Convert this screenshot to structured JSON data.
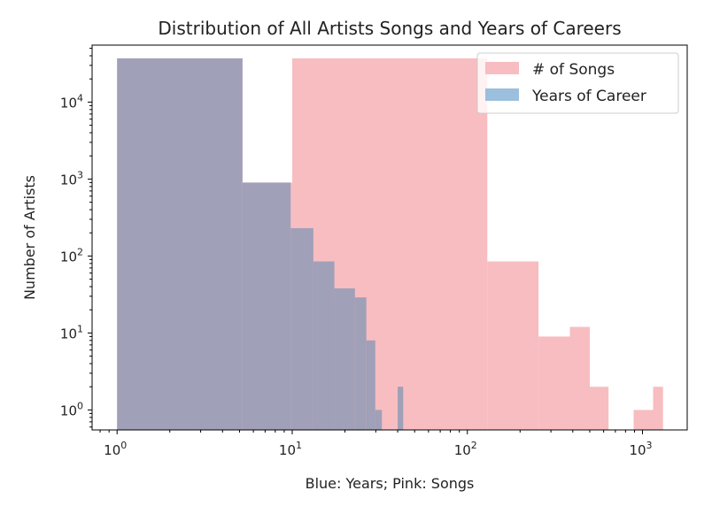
{
  "chart_data": {
    "type": "histogram",
    "title": "Distribution of All Artists Songs and Years of Careers",
    "xlabel": "Blue: Years; Pink: Songs",
    "ylabel": "Number of Artists",
    "xscale": "log",
    "yscale": "log",
    "xlim": [
      0.72,
      1800
    ],
    "ylim": [
      0.55,
      55000
    ],
    "xticks": [
      {
        "base": "10",
        "exp": "0",
        "value": 1
      },
      {
        "base": "10",
        "exp": "1",
        "value": 10
      },
      {
        "base": "10",
        "exp": "2",
        "value": 100
      },
      {
        "base": "10",
        "exp": "3",
        "value": 1000
      }
    ],
    "yticks": [
      {
        "base": "10",
        "exp": "0",
        "value": 1
      },
      {
        "base": "10",
        "exp": "1",
        "value": 10
      },
      {
        "base": "10",
        "exp": "2",
        "value": 100
      },
      {
        "base": "10",
        "exp": "3",
        "value": 1000
      },
      {
        "base": "10",
        "exp": "4",
        "value": 10000
      }
    ],
    "legend": {
      "position": "top-right",
      "entries": [
        "# of Songs",
        "Years of Career"
      ]
    },
    "overlap_color": "#a0a0b8",
    "series": [
      {
        "name": "# of Songs",
        "color": "#f7bdc1",
        "bins": [
          {
            "x0": 1,
            "x1": 5.2,
            "count": 37000
          },
          {
            "x0": 5.2,
            "x1": 10,
            "count": 900
          },
          {
            "x0": 10,
            "x1": 130,
            "count": 37000
          },
          {
            "x0": 130,
            "x1": 255,
            "count": 85
          },
          {
            "x0": 255,
            "x1": 385,
            "count": 9
          },
          {
            "x0": 385,
            "x1": 500,
            "count": 12
          },
          {
            "x0": 500,
            "x1": 640,
            "count": 2
          },
          {
            "x0": 890,
            "x1": 1150,
            "count": 1
          },
          {
            "x0": 1150,
            "x1": 1310,
            "count": 2
          }
        ]
      },
      {
        "name": "Years of Career",
        "color": "#9bbfdd",
        "bins": [
          {
            "x0": 1,
            "x1": 5.2,
            "count": 37000
          },
          {
            "x0": 5.2,
            "x1": 9.8,
            "count": 900
          },
          {
            "x0": 9.8,
            "x1": 13.2,
            "count": 230
          },
          {
            "x0": 13.2,
            "x1": 17.4,
            "count": 85
          },
          {
            "x0": 17.4,
            "x1": 22.8,
            "count": 38
          },
          {
            "x0": 22.8,
            "x1": 26.5,
            "count": 29
          },
          {
            "x0": 26.5,
            "x1": 29.8,
            "count": 8
          },
          {
            "x0": 29.8,
            "x1": 32.5,
            "count": 1
          },
          {
            "x0": 40,
            "x1": 43,
            "count": 2
          }
        ]
      }
    ]
  }
}
